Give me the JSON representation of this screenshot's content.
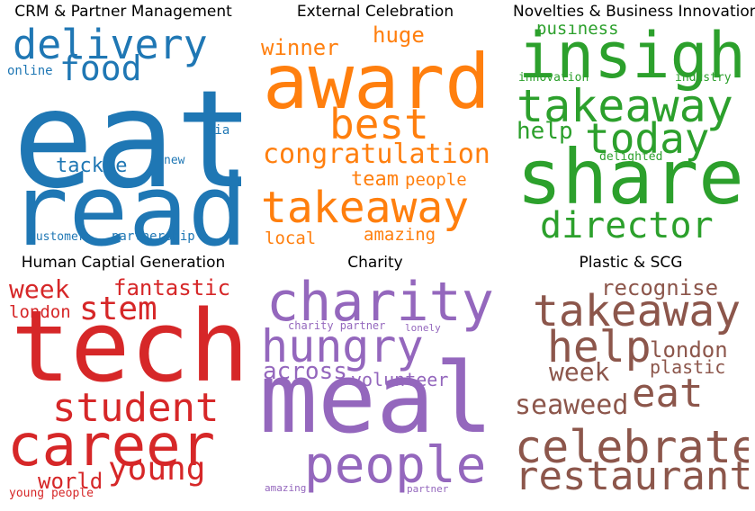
{
  "chart_data": [
    {
      "type": "wordcloud",
      "title": "CRM & Partner Management",
      "color": "#1f77b4",
      "words": [
        {
          "text": "eat",
          "weight": 1.0
        },
        {
          "text": "read",
          "weight": 0.87
        },
        {
          "text": "delivery",
          "weight": 0.42
        },
        {
          "text": "food",
          "weight": 0.36
        },
        {
          "text": "tackle",
          "weight": 0.25
        },
        {
          "text": "partnership",
          "weight": 0.14
        },
        {
          "text": "customer",
          "weight": 0.13
        },
        {
          "text": "online",
          "weight": 0.13
        },
        {
          "text": "via",
          "weight": 0.13
        },
        {
          "text": "new",
          "weight": 0.13
        }
      ]
    },
    {
      "type": "wordcloud",
      "title": "External Celebration",
      "color": "#ff7f0e",
      "words": [
        {
          "text": "award",
          "weight": 1.0
        },
        {
          "text": "best",
          "weight": 0.58
        },
        {
          "text": "takeaway",
          "weight": 0.6
        },
        {
          "text": "congratulation",
          "weight": 0.38
        },
        {
          "text": "winner",
          "weight": 0.3
        },
        {
          "text": "huge",
          "weight": 0.3
        },
        {
          "text": "team",
          "weight": 0.27
        },
        {
          "text": "people",
          "weight": 0.24
        },
        {
          "text": "amazing",
          "weight": 0.24
        },
        {
          "text": "local",
          "weight": 0.24
        }
      ]
    },
    {
      "type": "wordcloud",
      "title": "Novelties & Business Innovations",
      "color": "#2ca02c",
      "words": [
        {
          "text": "share",
          "weight": 1.0
        },
        {
          "text": "insight",
          "weight": 0.88
        },
        {
          "text": "takeaway",
          "weight": 0.68
        },
        {
          "text": "today",
          "weight": 0.58
        },
        {
          "text": "director",
          "weight": 0.5
        },
        {
          "text": "help",
          "weight": 0.34
        },
        {
          "text": "business",
          "weight": 0.24
        },
        {
          "text": "innovation",
          "weight": 0.17
        },
        {
          "text": "industry",
          "weight": 0.17
        },
        {
          "text": "delighted",
          "weight": 0.17
        }
      ]
    },
    {
      "type": "wordcloud",
      "title": "Human Captial Generation",
      "color": "#d62728",
      "words": [
        {
          "text": "tech",
          "weight": 1.0
        },
        {
          "text": "career",
          "weight": 0.78
        },
        {
          "text": "student",
          "weight": 0.58
        },
        {
          "text": "young",
          "weight": 0.5
        },
        {
          "text": "stem",
          "weight": 0.46
        },
        {
          "text": "week",
          "weight": 0.35
        },
        {
          "text": "fantastic",
          "weight": 0.31
        },
        {
          "text": "world",
          "weight": 0.31
        },
        {
          "text": "london",
          "weight": 0.24
        },
        {
          "text": "young people",
          "weight": 0.17
        }
      ]
    },
    {
      "type": "wordcloud",
      "title": "Charity",
      "color": "#9467bd",
      "words": [
        {
          "text": "meal",
          "weight": 1.0
        },
        {
          "text": "charity",
          "weight": 0.6
        },
        {
          "text": "people",
          "weight": 0.6
        },
        {
          "text": "hungry",
          "weight": 0.55
        },
        {
          "text": "across",
          "weight": 0.3
        },
        {
          "text": "volunteer",
          "weight": 0.24
        },
        {
          "text": "charity partner",
          "weight": 0.12
        },
        {
          "text": "lonely",
          "weight": 0.1
        },
        {
          "text": "amazing",
          "weight": 0.1
        },
        {
          "text": "partner",
          "weight": 0.1
        }
      ]
    },
    {
      "type": "wordcloud",
      "title": "Plastic & SCG",
      "color": "#8c564b",
      "words": [
        {
          "text": "celebrate",
          "weight": 1.0
        },
        {
          "text": "restaurant",
          "weight": 0.95
        },
        {
          "text": "takeaway",
          "weight": 0.93
        },
        {
          "text": "help",
          "weight": 0.9
        },
        {
          "text": "eat",
          "weight": 0.78
        },
        {
          "text": "seaweed",
          "weight": 0.58
        },
        {
          "text": "week",
          "weight": 0.5
        },
        {
          "text": "london",
          "weight": 0.45
        },
        {
          "text": "recognise",
          "weight": 0.42
        },
        {
          "text": "plastic",
          "weight": 0.4
        }
      ]
    }
  ]
}
